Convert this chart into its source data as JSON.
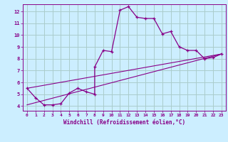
{
  "xlabel": "Windchill (Refroidissement éolien,°C)",
  "background_color": "#cceeff",
  "line_color": "#880088",
  "grid_color": "#aacccc",
  "xlim": [
    -0.5,
    23.5
  ],
  "ylim": [
    3.6,
    12.6
  ],
  "xticks": [
    0,
    1,
    2,
    3,
    4,
    5,
    6,
    7,
    8,
    9,
    10,
    11,
    12,
    13,
    14,
    15,
    16,
    17,
    18,
    19,
    20,
    21,
    22,
    23
  ],
  "yticks": [
    4,
    5,
    6,
    7,
    8,
    9,
    10,
    11,
    12
  ],
  "series": [
    [
      0,
      5.5
    ],
    [
      1,
      4.7
    ],
    [
      2,
      4.1
    ],
    [
      3,
      4.1
    ],
    [
      4,
      4.2
    ],
    [
      5,
      5.1
    ],
    [
      6,
      5.5
    ],
    [
      7,
      5.2
    ],
    [
      8,
      5.0
    ],
    [
      8,
      7.3
    ],
    [
      9,
      8.7
    ],
    [
      10,
      8.6
    ],
    [
      11,
      12.1
    ],
    [
      12,
      12.4
    ],
    [
      13,
      11.5
    ],
    [
      14,
      11.4
    ],
    [
      15,
      11.4
    ],
    [
      16,
      10.1
    ],
    [
      17,
      10.3
    ],
    [
      18,
      9.0
    ],
    [
      19,
      8.7
    ],
    [
      20,
      8.7
    ],
    [
      21,
      8.0
    ],
    [
      22,
      8.1
    ],
    [
      23,
      8.4
    ]
  ],
  "line2_x": [
    0,
    23
  ],
  "line2_y": [
    5.5,
    8.4
  ],
  "line3_x": [
    0,
    23
  ],
  "line3_y": [
    4.1,
    8.4
  ]
}
